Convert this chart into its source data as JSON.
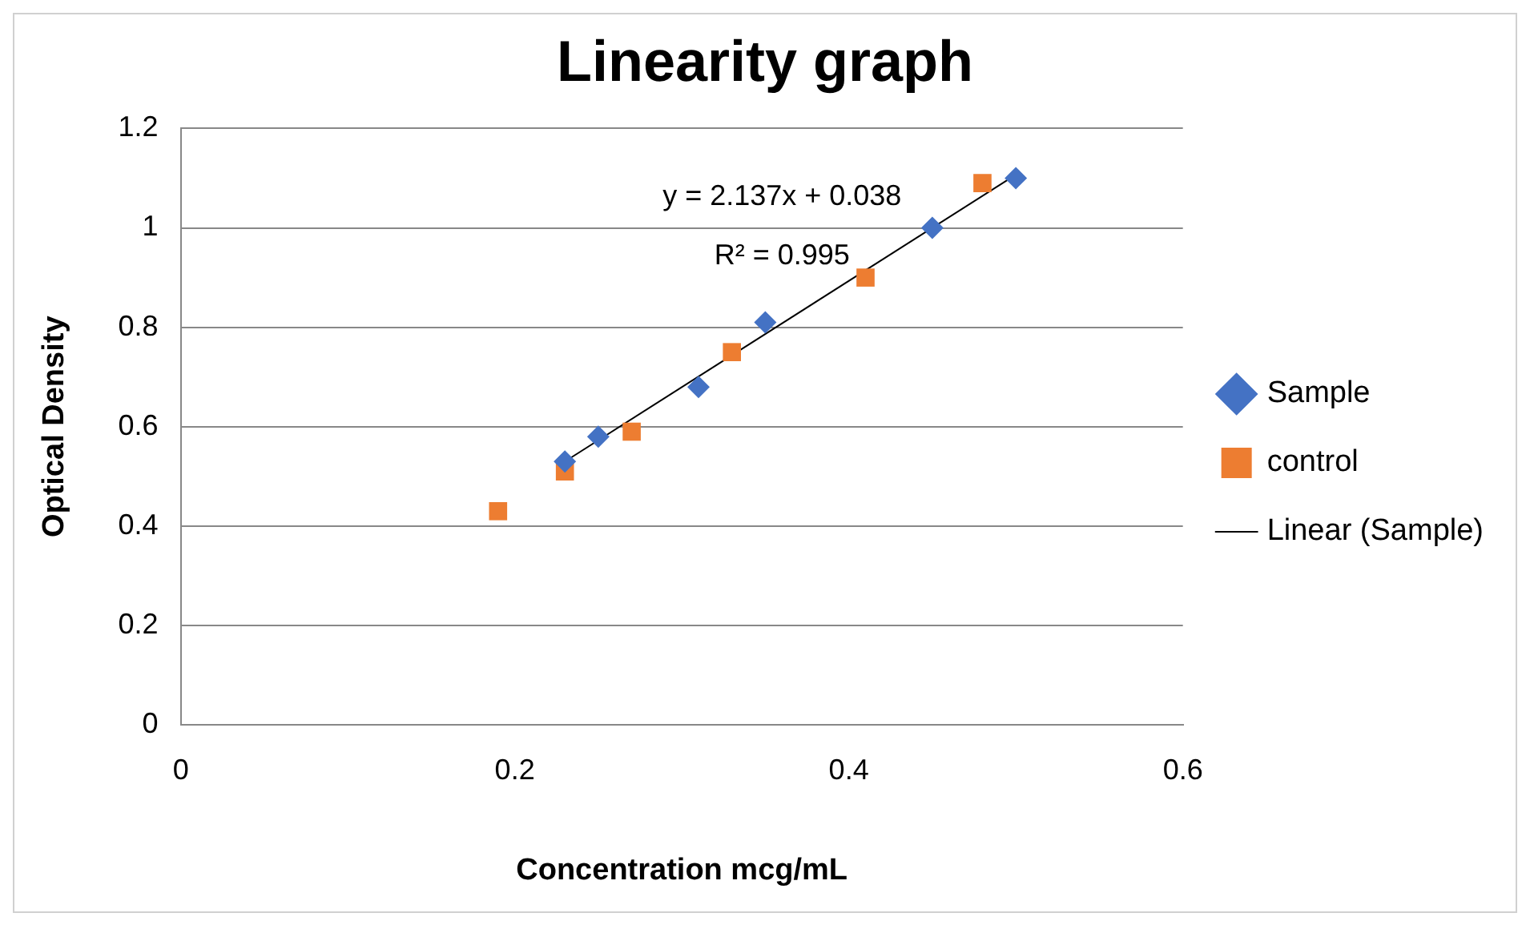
{
  "chart_data": {
    "type": "scatter",
    "title": "Linearity graph",
    "xlabel": "Concentration mcg/mL",
    "ylabel": "Optical Density",
    "xlim": [
      0,
      0.6
    ],
    "xticks": [
      0,
      0.2,
      0.4,
      0.6
    ],
    "ylim": [
      0,
      1.2
    ],
    "yticks": [
      0,
      0.2,
      0.4,
      0.6,
      0.8,
      1,
      1.2
    ],
    "grid": "y",
    "legend": "right",
    "series": [
      {
        "name": "Sample",
        "marker": "diamond",
        "color": "#4472c4",
        "x": [
          0.23,
          0.25,
          0.31,
          0.35,
          0.45,
          0.5
        ],
        "values": [
          0.53,
          0.58,
          0.68,
          0.81,
          1.0,
          1.1
        ]
      },
      {
        "name": "control",
        "marker": "square",
        "color": "#ed7d31",
        "x": [
          0.19,
          0.23,
          0.27,
          0.33,
          0.41,
          0.48
        ],
        "values": [
          0.43,
          0.51,
          0.59,
          0.75,
          0.9,
          1.09
        ]
      },
      {
        "name": "Linear (Sample)",
        "type": "line",
        "marker": "none",
        "line_style": "solid",
        "color": "#000000",
        "x": [
          0.23,
          0.5
        ],
        "values": [
          0.53,
          1.107
        ]
      }
    ],
    "annotations": [
      "y = 2.137x + 0.038",
      "R² = 0.995"
    ]
  }
}
